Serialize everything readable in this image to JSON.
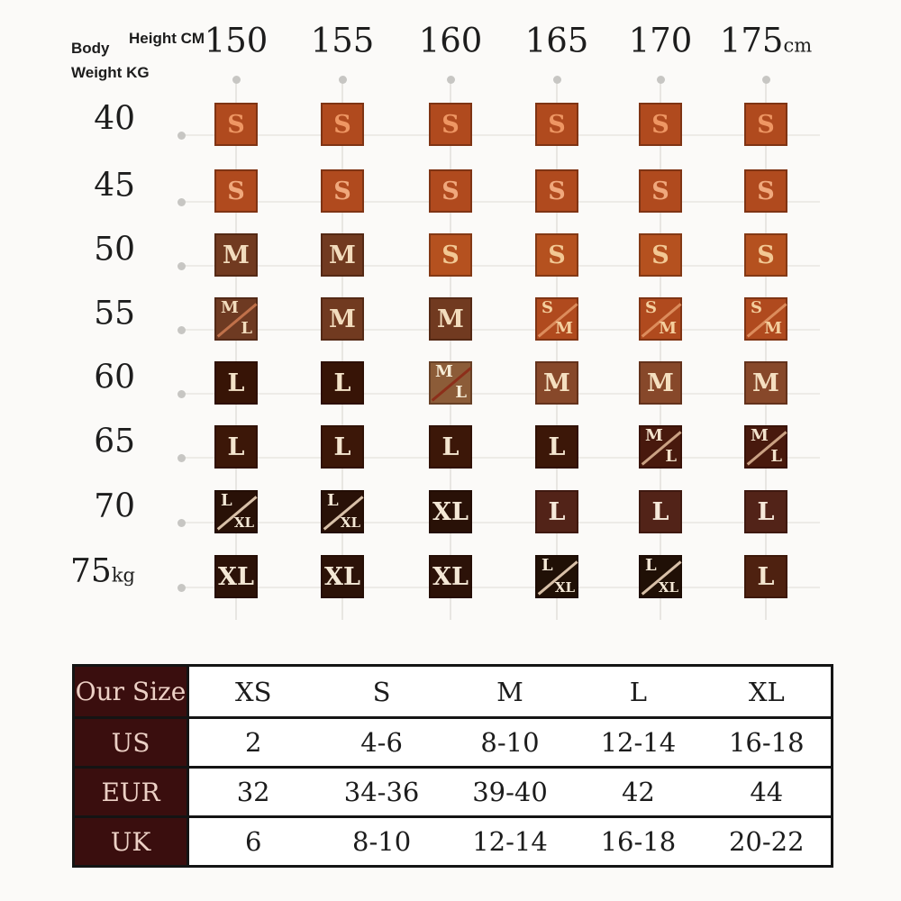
{
  "colors": {
    "page_bg": "#fbfaf8",
    "grid_line": "#e8e6e2",
    "dot": "#c7c6c3",
    "accent_orange": "#b04a1e",
    "table_header_bg": "#3a0e0e",
    "table_header_fg": "#ecd0c5",
    "table_border": "#141414",
    "table_bg": "#ffffff",
    "table_fg": "#1c1c1c"
  },
  "grid": {
    "corner_height_label": "Height CM",
    "corner_body_line1": "Body",
    "corner_body_line2": "Weight KG",
    "heights": [
      {
        "text": "150"
      },
      {
        "text": "155"
      },
      {
        "text": "160"
      },
      {
        "text": "165"
      },
      {
        "text": "170"
      },
      {
        "text": "175",
        "suffix": "cm"
      }
    ],
    "rows": [
      {
        "weight": {
          "text": "40"
        },
        "cells": [
          {
            "label": "S",
            "bg": "#b04a1e",
            "fg": "#ee9663"
          },
          {
            "label": "S",
            "bg": "#b04a1e",
            "fg": "#ee9663"
          },
          {
            "label": "S",
            "bg": "#b04a1e",
            "fg": "#ee9663"
          },
          {
            "label": "S",
            "bg": "#b04a1e",
            "fg": "#ee9663"
          },
          {
            "label": "S",
            "bg": "#b04a1e",
            "fg": "#ee9663"
          },
          {
            "label": "S",
            "bg": "#b04a1e",
            "fg": "#ee9663"
          }
        ]
      },
      {
        "weight": {
          "text": "45"
        },
        "cells": [
          {
            "label": "S",
            "bg": "#b04a1e",
            "fg": "#f0a87c"
          },
          {
            "label": "S",
            "bg": "#b04a1e",
            "fg": "#f0a87c"
          },
          {
            "label": "S",
            "bg": "#b04a1e",
            "fg": "#f0a87c"
          },
          {
            "label": "S",
            "bg": "#b04a1e",
            "fg": "#f0a87c"
          },
          {
            "label": "S",
            "bg": "#b04a1e",
            "fg": "#f0a87c"
          },
          {
            "label": "S",
            "bg": "#b04a1e",
            "fg": "#f0a87c"
          }
        ]
      },
      {
        "weight": {
          "text": "50"
        },
        "cells": [
          {
            "label": "M",
            "bg": "#713a20",
            "fg": "#f2dcbd"
          },
          {
            "label": "M",
            "bg": "#713a20",
            "fg": "#f2dcbd"
          },
          {
            "label": "S",
            "bg": "#b5511f",
            "fg": "#f2c894"
          },
          {
            "label": "S",
            "bg": "#b5511f",
            "fg": "#f2c894"
          },
          {
            "label": "S",
            "bg": "#b5511f",
            "fg": "#f2c894"
          },
          {
            "label": "S",
            "bg": "#b5511f",
            "fg": "#f2c894"
          }
        ]
      },
      {
        "weight": {
          "text": "55"
        },
        "cells": [
          {
            "label": "M/L",
            "bg": "#6e3a22",
            "fg": "#f2dcbd",
            "slash": "#c0714a"
          },
          {
            "label": "M",
            "bg": "#713a20",
            "fg": "#f2dcbd"
          },
          {
            "label": "M",
            "bg": "#713a20",
            "fg": "#f2dcbd"
          },
          {
            "label": "S/M",
            "bg": "#b04a1e",
            "fg": "#f4cf9e",
            "slash": "#dc8c5c"
          },
          {
            "label": "S/M",
            "bg": "#b04a1e",
            "fg": "#f4cf9e",
            "slash": "#dc8c5c"
          },
          {
            "label": "S/M",
            "bg": "#b04a1e",
            "fg": "#f4cf9e",
            "slash": "#dc8c5c"
          }
        ]
      },
      {
        "weight": {
          "text": "60"
        },
        "cells": [
          {
            "label": "L",
            "bg": "#371406",
            "fg": "#f4e3c8"
          },
          {
            "label": "L",
            "bg": "#371406",
            "fg": "#f4e3c8"
          },
          {
            "label": "M/L",
            "bg": "#8c5c38",
            "fg": "#f6ecd6",
            "slash": "#8c2f1a"
          },
          {
            "label": "M",
            "bg": "#87482a",
            "fg": "#f4dfc0"
          },
          {
            "label": "M",
            "bg": "#87482a",
            "fg": "#f4dfc0"
          },
          {
            "label": "M",
            "bg": "#87482a",
            "fg": "#f4dfc0"
          }
        ]
      },
      {
        "weight": {
          "text": "65"
        },
        "cells": [
          {
            "label": "L",
            "bg": "#3c1708",
            "fg": "#f4e6d0"
          },
          {
            "label": "L",
            "bg": "#3c1708",
            "fg": "#f4e6d0"
          },
          {
            "label": "L",
            "bg": "#3c1708",
            "fg": "#f4e6d0"
          },
          {
            "label": "L",
            "bg": "#3c1708",
            "fg": "#f4e6d0"
          },
          {
            "label": "M/L",
            "bg": "#48190d",
            "fg": "#f2e2cc",
            "slash": "#caa183"
          },
          {
            "label": "M/L",
            "bg": "#48190d",
            "fg": "#f2e2cc",
            "slash": "#caa183"
          }
        ]
      },
      {
        "weight": {
          "text": "70"
        },
        "cells": [
          {
            "label": "L/XL",
            "bg": "#291107",
            "fg": "#f4e8d6",
            "slash": "#d8c0a8"
          },
          {
            "label": "L/XL",
            "bg": "#291107",
            "fg": "#f4e8d6",
            "slash": "#d8c0a8"
          },
          {
            "label": "XL",
            "bg": "#291107",
            "fg": "#f4e8d6"
          },
          {
            "label": "L",
            "bg": "#522318",
            "fg": "#f6e9da"
          },
          {
            "label": "L",
            "bg": "#522318",
            "fg": "#f6e9da"
          },
          {
            "label": "L",
            "bg": "#522318",
            "fg": "#f6e9da"
          }
        ]
      },
      {
        "weight": {
          "text": "75",
          "suffix": "kg"
        },
        "cells": [
          {
            "label": "XL",
            "bg": "#2c1208",
            "fg": "#f4e8d6"
          },
          {
            "label": "XL",
            "bg": "#2c1208",
            "fg": "#f4e8d6"
          },
          {
            "label": "XL",
            "bg": "#2c1208",
            "fg": "#f4e8d6"
          },
          {
            "label": "L/XL",
            "bg": "#201006",
            "fg": "#f4e8d6",
            "slash": "#d8c0a8"
          },
          {
            "label": "L/XL",
            "bg": "#201006",
            "fg": "#f4e8d6",
            "slash": "#d8c0a8"
          },
          {
            "label": "L",
            "bg": "#4e2110",
            "fg": "#f4e6d0"
          }
        ]
      }
    ]
  },
  "conversion_table": {
    "rows": [
      {
        "header": "Our Size",
        "values": [
          "XS",
          "S",
          "M",
          "L",
          "XL"
        ]
      },
      {
        "header": "US",
        "values": [
          "2",
          "4-6",
          "8-10",
          "12-14",
          "16-18"
        ]
      },
      {
        "header": "EUR",
        "values": [
          "32",
          "34-36",
          "39-40",
          "42",
          "44"
        ]
      },
      {
        "header": "UK",
        "values": [
          "6",
          "8-10",
          "12-14",
          "16-18",
          "20-22"
        ]
      }
    ]
  },
  "chart_data": [
    {
      "type": "heatmap",
      "title": "Recommended size by height and body weight",
      "xlabel": "Height CM",
      "ylabel": "Body Weight KG",
      "x": [
        150,
        155,
        160,
        165,
        170,
        175
      ],
      "y": [
        40,
        45,
        50,
        55,
        60,
        65,
        70,
        75
      ],
      "values": [
        [
          "S",
          "S",
          "S",
          "S",
          "S",
          "S"
        ],
        [
          "S",
          "S",
          "S",
          "S",
          "S",
          "S"
        ],
        [
          "M",
          "M",
          "S",
          "S",
          "S",
          "S"
        ],
        [
          "M/L",
          "M",
          "M",
          "S/M",
          "S/M",
          "S/M"
        ],
        [
          "L",
          "L",
          "M/L",
          "M",
          "M",
          "M"
        ],
        [
          "L",
          "L",
          "L",
          "L",
          "M/L",
          "M/L"
        ],
        [
          "L/XL",
          "L/XL",
          "XL",
          "L",
          "L",
          "L"
        ],
        [
          "XL",
          "XL",
          "XL",
          "L/XL",
          "L/XL",
          "L"
        ]
      ]
    },
    {
      "type": "table",
      "columns": [
        "Our Size",
        "XS",
        "S",
        "M",
        "L",
        "XL"
      ],
      "rows": [
        [
          "US",
          "2",
          "4-6",
          "8-10",
          "12-14",
          "16-18"
        ],
        [
          "EUR",
          "32",
          "34-36",
          "39-40",
          "42",
          "44"
        ],
        [
          "UK",
          "6",
          "8-10",
          "12-14",
          "16-18",
          "20-22"
        ]
      ]
    }
  ]
}
